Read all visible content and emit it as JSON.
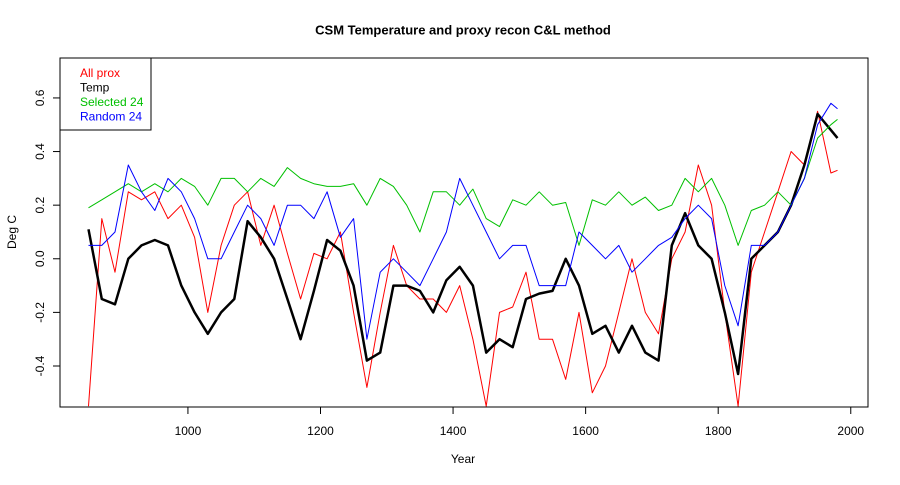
{
  "chart_data": {
    "type": "line",
    "title": "CSM Temperature and proxy recon C&L method",
    "x_label": "Year",
    "y_label": "Deg C",
    "x": [
      850,
      870,
      890,
      910,
      930,
      950,
      970,
      990,
      1010,
      1030,
      1050,
      1070,
      1090,
      1110,
      1130,
      1150,
      1170,
      1190,
      1210,
      1230,
      1250,
      1270,
      1290,
      1310,
      1330,
      1350,
      1370,
      1390,
      1410,
      1430,
      1450,
      1470,
      1490,
      1510,
      1530,
      1550,
      1570,
      1590,
      1610,
      1630,
      1650,
      1670,
      1690,
      1710,
      1730,
      1750,
      1770,
      1790,
      1810,
      1830,
      1850,
      1870,
      1890,
      1910,
      1930,
      1950,
      1970,
      1980
    ],
    "series": [
      {
        "name": "All prox",
        "color": "#ff0000",
        "width": 1,
        "values": [
          -0.55,
          0.15,
          -0.05,
          0.25,
          0.22,
          0.25,
          0.15,
          0.2,
          0.08,
          -0.2,
          0.05,
          0.2,
          0.25,
          0.05,
          0.2,
          0.02,
          -0.15,
          0.02,
          0.0,
          0.1,
          -0.2,
          -0.48,
          -0.2,
          0.05,
          -0.1,
          -0.15,
          -0.15,
          -0.2,
          -0.1,
          -0.3,
          -0.55,
          -0.2,
          -0.18,
          -0.05,
          -0.3,
          -0.3,
          -0.45,
          -0.2,
          -0.5,
          -0.4,
          -0.2,
          0.0,
          -0.2,
          -0.28,
          0.0,
          0.1,
          0.35,
          0.2,
          -0.2,
          -0.55,
          -0.05,
          0.1,
          0.25,
          0.4,
          0.35,
          0.55,
          0.32,
          0.33
        ]
      },
      {
        "name": "Temp",
        "color": "#000000",
        "width": 2.5,
        "values": [
          0.11,
          -0.15,
          -0.17,
          0.0,
          0.05,
          0.07,
          0.05,
          -0.1,
          -0.2,
          -0.28,
          -0.2,
          -0.15,
          0.14,
          0.08,
          0.0,
          -0.15,
          -0.3,
          -0.12,
          0.07,
          0.03,
          -0.1,
          -0.38,
          -0.35,
          -0.1,
          -0.1,
          -0.12,
          -0.2,
          -0.08,
          -0.03,
          -0.1,
          -0.35,
          -0.3,
          -0.33,
          -0.15,
          -0.13,
          -0.12,
          0.0,
          -0.1,
          -0.28,
          -0.25,
          -0.35,
          -0.25,
          -0.35,
          -0.38,
          0.05,
          0.17,
          0.05,
          0.0,
          -0.2,
          -0.43,
          0.0,
          0.05,
          0.1,
          0.2,
          0.35,
          0.54,
          0.48,
          0.45
        ]
      },
      {
        "name": "Selected 24",
        "color": "#00c000",
        "width": 1,
        "values": [
          0.19,
          0.22,
          0.25,
          0.28,
          0.25,
          0.28,
          0.25,
          0.3,
          0.27,
          0.2,
          0.3,
          0.3,
          0.25,
          0.3,
          0.27,
          0.34,
          0.3,
          0.28,
          0.27,
          0.27,
          0.28,
          0.2,
          0.3,
          0.27,
          0.2,
          0.1,
          0.25,
          0.25,
          0.2,
          0.26,
          0.15,
          0.12,
          0.22,
          0.2,
          0.25,
          0.2,
          0.21,
          0.05,
          0.22,
          0.2,
          0.25,
          0.2,
          0.23,
          0.18,
          0.2,
          0.3,
          0.25,
          0.3,
          0.2,
          0.05,
          0.18,
          0.2,
          0.25,
          0.2,
          0.3,
          0.45,
          0.5,
          0.52
        ]
      },
      {
        "name": "Random 24",
        "color": "#0000ff",
        "width": 1,
        "values": [
          0.05,
          0.05,
          0.1,
          0.35,
          0.25,
          0.18,
          0.3,
          0.25,
          0.15,
          0.0,
          0.0,
          0.1,
          0.2,
          0.15,
          0.05,
          0.2,
          0.2,
          0.15,
          0.25,
          0.08,
          0.15,
          -0.3,
          -0.05,
          0.0,
          -0.05,
          -0.1,
          0.0,
          0.1,
          0.3,
          0.2,
          0.1,
          0.0,
          0.05,
          0.05,
          -0.1,
          -0.1,
          -0.1,
          0.1,
          0.05,
          0.0,
          0.05,
          -0.05,
          0.0,
          0.05,
          0.08,
          0.15,
          0.2,
          0.15,
          -0.1,
          -0.25,
          0.05,
          0.05,
          0.1,
          0.2,
          0.3,
          0.5,
          0.58,
          0.56
        ]
      }
    ],
    "xlim": [
      807,
      2026
    ],
    "xticks": [
      1000,
      1200,
      1400,
      1600,
      1800,
      2000
    ],
    "ylim": [
      -0.553,
      0.749
    ],
    "yticks": [
      -0.4,
      -0.2,
      {
        "value": 0,
        "label": "0.0"
      },
      0.2,
      0.4,
      0.6
    ],
    "legend": "topleft"
  }
}
